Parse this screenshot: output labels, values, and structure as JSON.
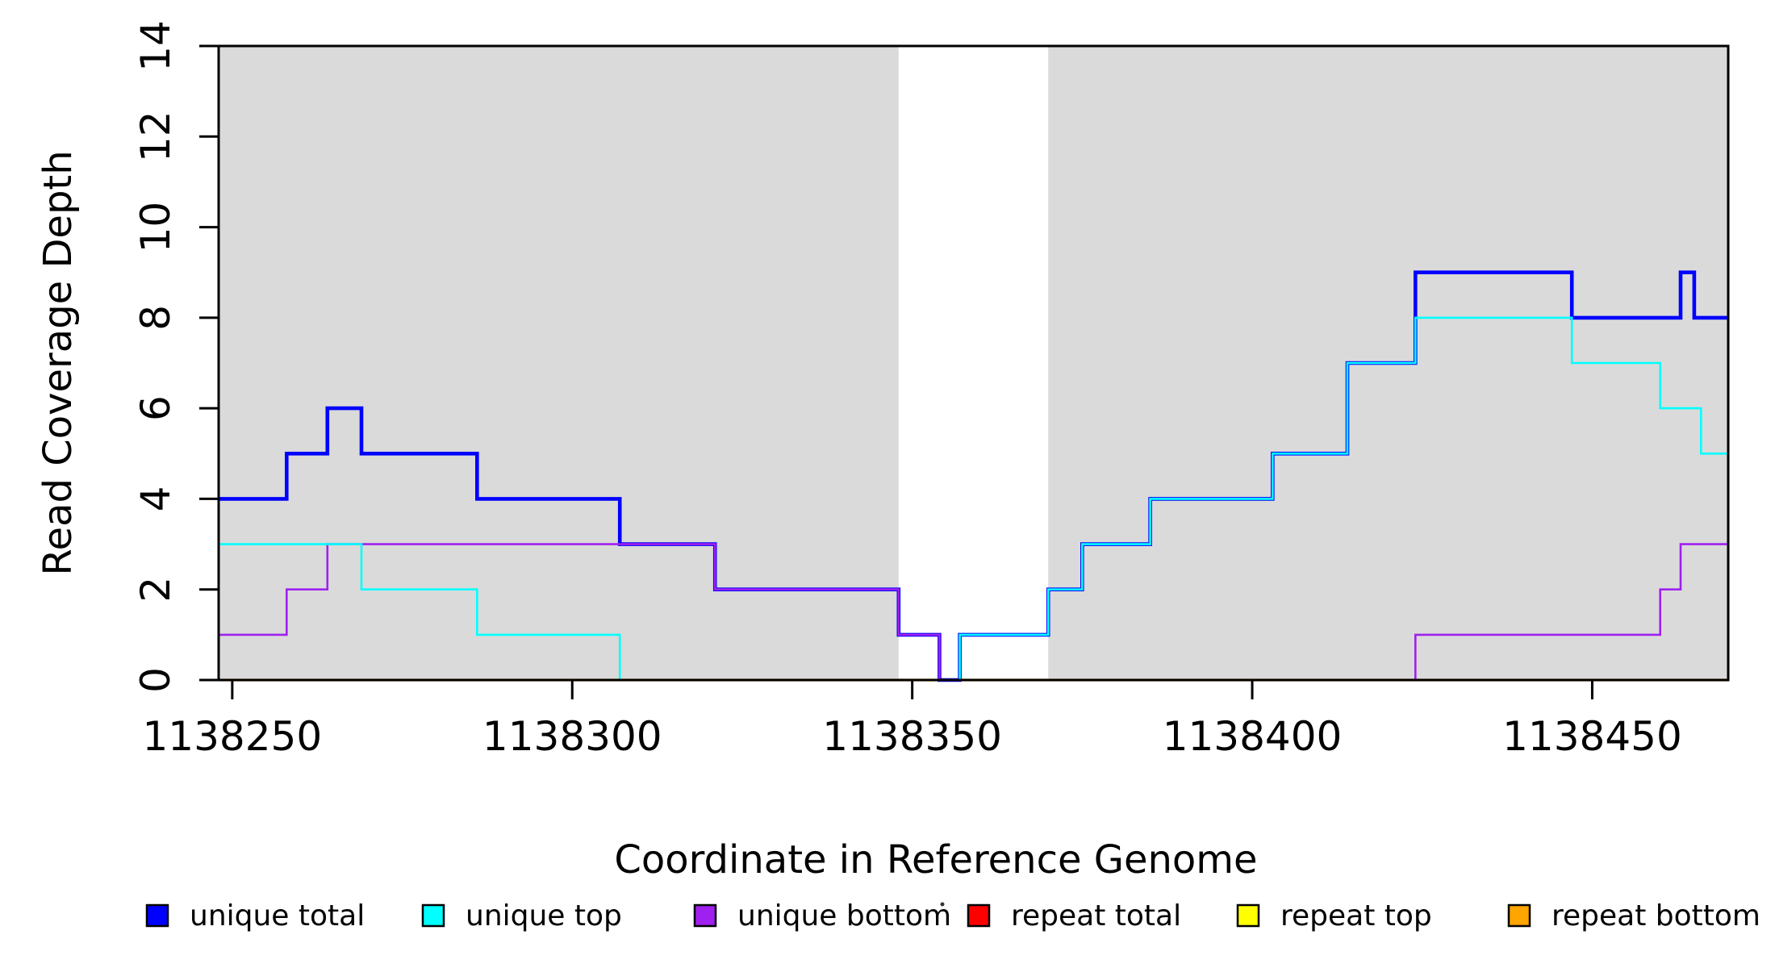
{
  "chart_data": {
    "type": "line",
    "subtype": "step-coverage",
    "title": "",
    "xlabel": "Coordinate in Reference Genome",
    "ylabel": "Read Coverage Depth",
    "xlim": [
      1138248,
      1138470
    ],
    "ylim": [
      0,
      14
    ],
    "x_ticks": [
      "1138250",
      "1138300",
      "1138350",
      "1138400",
      "1138450"
    ],
    "x_tick_values": [
      1138250,
      1138300,
      1138350,
      1138400,
      1138450
    ],
    "y_ticks": [
      "0",
      "2",
      "4",
      "6",
      "8",
      "10",
      "12",
      "14"
    ],
    "y_tick_values": [
      0,
      2,
      4,
      6,
      8,
      10,
      12,
      14
    ],
    "grid": false,
    "step_style": "step-after",
    "background_shading": {
      "color": "#DADADA",
      "regions": [
        [
          1138248,
          1138348
        ],
        [
          1138370,
          1138470
        ]
      ]
    },
    "axis_color": "#000000",
    "series": [
      {
        "name": "unique total",
        "color": "#0000FF",
        "points": [
          [
            1138248,
            4
          ],
          [
            1138258,
            5
          ],
          [
            1138264,
            6
          ],
          [
            1138269,
            5
          ],
          [
            1138286,
            4
          ],
          [
            1138307,
            3
          ],
          [
            1138321,
            2
          ],
          [
            1138348,
            1
          ],
          [
            1138354,
            0
          ],
          [
            1138357,
            1
          ],
          [
            1138370,
            2
          ],
          [
            1138375,
            3
          ],
          [
            1138385,
            4
          ],
          [
            1138403,
            5
          ],
          [
            1138414,
            7
          ],
          [
            1138424,
            9
          ],
          [
            1138447,
            8
          ],
          [
            1138463,
            9
          ],
          [
            1138465,
            8
          ]
        ]
      },
      {
        "name": "unique top",
        "color": "#00FFFF",
        "points": [
          [
            1138248,
            3
          ],
          [
            1138269,
            2
          ],
          [
            1138286,
            1
          ],
          [
            1138307,
            0
          ],
          [
            1138357,
            1
          ],
          [
            1138370,
            2
          ],
          [
            1138375,
            3
          ],
          [
            1138385,
            4
          ],
          [
            1138403,
            5
          ],
          [
            1138414,
            7
          ],
          [
            1138424,
            8
          ],
          [
            1138447,
            7
          ],
          [
            1138460,
            6
          ],
          [
            1138466,
            5
          ]
        ]
      },
      {
        "name": "unique bottom",
        "color": "#A020F0",
        "points": [
          [
            1138248,
            1
          ],
          [
            1138258,
            2
          ],
          [
            1138264,
            3
          ],
          [
            1138321,
            2
          ],
          [
            1138348,
            1
          ],
          [
            1138354,
            0
          ],
          [
            1138424,
            1
          ],
          [
            1138460,
            2
          ],
          [
            1138463,
            3
          ]
        ]
      },
      {
        "name": "repeat total",
        "color": "#FF0000",
        "points": [
          [
            1138248,
            0
          ]
        ]
      },
      {
        "name": "repeat top",
        "color": "#FFFF00",
        "points": [
          [
            1138248,
            0
          ]
        ]
      },
      {
        "name": "repeat bottom",
        "color": "#FFA500",
        "points": [
          [
            1138248,
            0
          ]
        ]
      }
    ],
    "draw_order": [
      "repeat total",
      "repeat top",
      "repeat bottom",
      "unique total",
      "unique bottom",
      "unique top"
    ],
    "legend": {
      "position": "bottom",
      "entries": [
        "unique total",
        "unique top",
        "unique bottom",
        "repeat total",
        "repeat top",
        "repeat bottom"
      ]
    }
  }
}
